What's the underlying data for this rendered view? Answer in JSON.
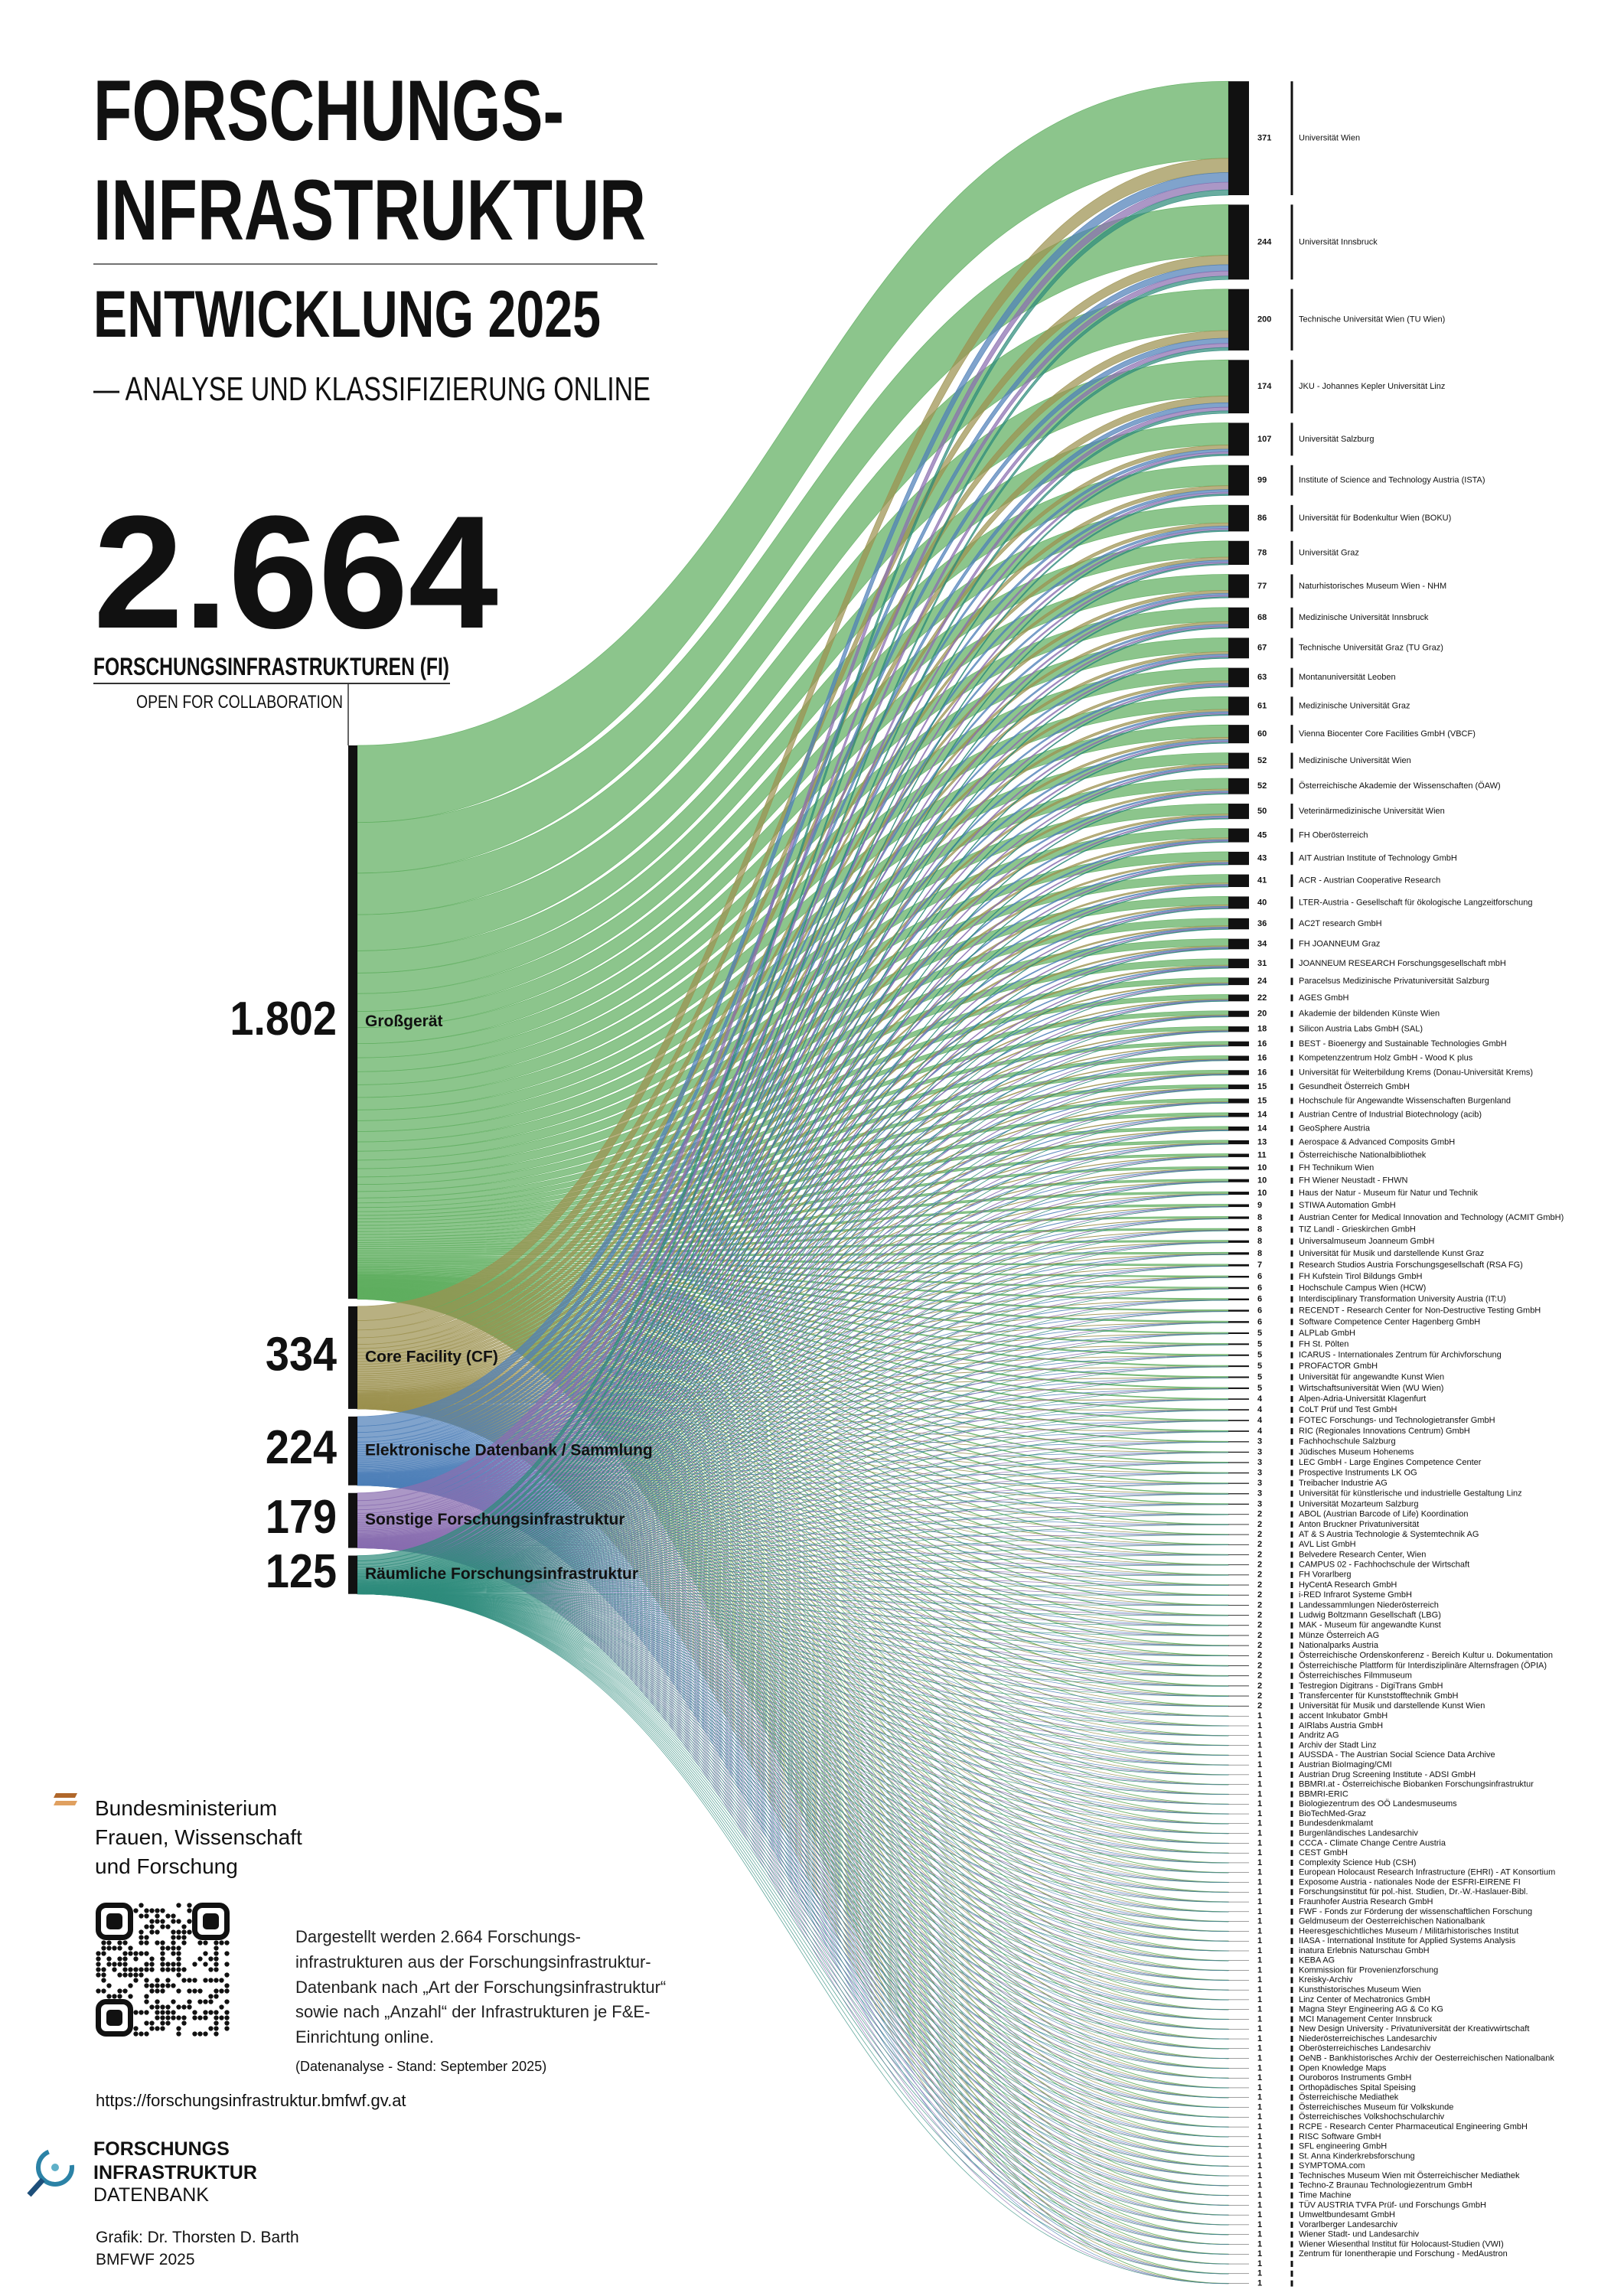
{
  "header": {
    "title_line1": "FORSCHUNGS-",
    "title_line2": "INFRASTRUKTUR",
    "subtitle": "ENTWICKLUNG 2025",
    "tagline": "— ANALYSE UND KLASSIFIZIERUNG ONLINE"
  },
  "summary": {
    "total": {
      "value": 2664,
      "label": "2.664"
    },
    "total_caption": "FORSCHUNGSINFRASTRUKTUREN (FI)",
    "note": "OPEN FOR COLLABORATION"
  },
  "chart_data": {
    "type": "sankey",
    "categories": [
      "Großgerät",
      "Core Facility (CF)",
      "Elektronische Datenbank / Sammlung",
      "Sonstige Forschungsinfrastruktur",
      "Räumliche Forschungsinfrastruktur"
    ],
    "values": [
      1802,
      334,
      224,
      179,
      125
    ],
    "value_labels": [
      "1.802",
      "334",
      "224",
      "179",
      "125"
    ],
    "colors": [
      "#5fae5f",
      "#9c9250",
      "#4f80b8",
      "#8a6fb0",
      "#2f8c7c"
    ],
    "targets": [
      "Universität Wien",
      "Universität Innsbruck",
      "Technische Universität Wien (TU Wien)",
      "JKU - Johannes Kepler Universität Linz",
      "Universität Salzburg",
      "Institute of Science and Technology Austria (ISTA)",
      "Universität für Bodenkultur Wien (BOKU)",
      "Universität Graz",
      "Naturhistorisches Museum Wien - NHM",
      "Medizinische Universität Innsbruck",
      "Technische Universität Graz (TU Graz)",
      "Montanuniversität Leoben",
      "Medizinische Universität Graz",
      "Vienna Biocenter Core Facilities GmbH (VBCF)",
      "Medizinische Universität Wien",
      "Österreichische Akademie der Wissenschaften (ÖAW)",
      "Veterinärmedizinische Universität Wien",
      "FH Oberösterreich",
      "AIT Austrian Institute of Technology GmbH",
      "ACR - Austrian Cooperative Research",
      "LTER-Austria - Gesellschaft für ökologische Langzeitforschung",
      "AC2T research GmbH",
      "FH JOANNEUM Graz",
      "JOANNEUM RESEARCH Forschungsgesellschaft mbH",
      "Paracelsus Medizinische Privatuniversität Salzburg",
      "AGES GmbH",
      "Akademie der bildenden Künste Wien",
      "Silicon Austria Labs GmbH (SAL)",
      "BEST - Bioenergy and Sustainable Technologies GmbH",
      "Kompetenzzentrum Holz GmbH - Wood K plus",
      "Universität für Weiterbildung Krems (Donau-Universität Krems)",
      "Gesundheit Österreich GmbH",
      "Hochschule für Angewandte Wissenschaften Burgenland",
      "Austrian Centre of Industrial Biotechnology (acib)",
      "GeoSphere Austria",
      "Aerospace & Advanced Composits GmbH",
      "Österreichische Nationalbibliothek",
      "FH Technikum Wien",
      "FH Wiener Neustadt - FHWN",
      "Haus der Natur - Museum für Natur und Technik",
      "STIWA Automation GmbH",
      "Austrian Center for Medical Innovation and Technology (ACMIT GmbH)",
      "TIZ Landl - Grieskirchen GmbH",
      "Universalmuseum Joanneum GmbH",
      "Universität für Musik und darstellende Kunst Graz",
      "Research Studios Austria Forschungsgesellschaft (RSA FG)",
      "FH Kufstein Tirol Bildungs GmbH",
      "Hochschule Campus Wien (HCW)",
      "Interdisciplinary Transformation University Austria (IT:U)",
      "RECENDT - Research Center for Non-Destructive Testing GmbH",
      "Software Competence Center Hagenberg GmbH",
      "ALPLab GmbH",
      "FH St. Pölten",
      "ICARUS - Internationales Zentrum für Archivforschung",
      "PROFACTOR GmbH",
      "Universität für angewandte Kunst Wien",
      "Wirtschaftsuniversität Wien (WU Wien)",
      "Alpen-Adria-Universität Klagenfurt",
      "CoLT Prüf und Test GmbH",
      "FOTEC Forschungs- und Technologietransfer GmbH",
      "RIC (Regionales Innovations Centrum) GmbH",
      "Fachhochschule Salzburg",
      "Jüdisches Museum Hohenems",
      "LEC GmbH - Large Engines Competence Center",
      "Prospective Instruments LK OG",
      "Treibacher Industrie AG",
      "Universität für künstlerische und industrielle Gestaltung Linz",
      "Universität Mozarteum Salzburg",
      "ABOL (Austrian Barcode of Life) Koordination",
      "Anton Bruckner Privatuniversität",
      "AT & S Austria Technologie & Systemtechnik AG",
      "AVL List GmbH",
      "Belvedere Research Center, Wien",
      "CAMPUS 02 - Fachhochschule der Wirtschaft",
      "FH Vorarlberg",
      "HyCentA Research GmbH",
      "i-RED Infrarot Systeme GmbH",
      "Landessammlungen Niederösterreich",
      "Ludwig Boltzmann Gesellschaft (LBG)",
      "MAK - Museum für angewandte Kunst",
      "Münze Österreich AG",
      "Nationalparks Austria",
      "Österreichische Ordenskonferenz - Bereich Kultur u. Dokumentation",
      "Österreichische Plattform für Interdisziplinäre Alternsfragen (ÖPIA)",
      "Österreichisches Filmmuseum",
      "Testregion Digitrans - DigiTrans GmbH",
      "Transfercenter für Kunststofftechnik GmbH",
      "Universität für Musik und darstellende Kunst Wien",
      "accent Inkubator GmbH",
      "AIRlabs Austria GmbH",
      "Andritz AG",
      "Archiv der Stadt Linz",
      "AUSSDA - The Austrian Social Science Data Archive",
      "Austrian BioImaging/CMI",
      "Austrian Drug Screening Institute - ADSI GmbH",
      "BBMRI.at - Österreichische Biobanken Forschungsinfrastruktur",
      "BBMRI-ERIC",
      "Biologiezentrum des OÖ Landesmuseums",
      "BioTechMed-Graz",
      "Bundesdenkmalamt",
      "Burgenländisches Landesarchiv",
      "CCCA - Climate Change Centre Austria",
      "CEST GmbH",
      "Complexity Science Hub (CSH)",
      "European Holocaust Research Infrastructure (EHRI) - AT Konsortium",
      "Exposome Austria - nationales Node der ESFRI-EIRENE FI",
      "Forschungsinstitut für pol.-hist. Studien, Dr.-W.-Haslauer-Bibl.",
      "Fraunhofer Austria Research GmbH",
      "FWF - Fonds zur Förderung der wissenschaftlichen Forschung",
      "Geldmuseum der Oesterreichischen Nationalbank",
      "Heeresgeschichtliches Museum / Militärhistorisches Institut",
      "IIASA - International Institute for Applied Systems Analysis",
      "inatura Erlebnis Naturschau GmbH",
      "KEBA AG",
      "Kommission für Provenienzforschung",
      "Kreisky-Archiv",
      "Kunsthistorisches Museum Wien",
      "Linz Center of Mechatronics GmbH",
      "Magna Steyr Engineering AG & Co KG",
      "MCI Management Center Innsbruck",
      "New Design University - Privatuniversität der Kreativwirtschaft",
      "Niederösterreichisches Landesarchiv",
      "Oberösterreichisches Landesarchiv",
      "OeNB - Bankhistorisches Archiv der Oesterreichischen Nationalbank",
      "Open Knowledge Maps",
      "Ouroboros Instruments GmbH",
      "Orthopädisches Spital Speising",
      "Österreichische Mediathek",
      "Österreichisches Museum für Volkskunde",
      "Österreichisches Volkshochschularchiv",
      "RCPE - Research Center Pharmaceutical Engineering GmbH",
      "RISC Software GmbH",
      "SFL engineering GmbH",
      "St. Anna Kinderkrebsforschung",
      "SYMPTOMA.com",
      "Technisches Museum Wien mit Österreichischer Mediathek",
      "Techno-Z Braunau Technologiezentrum GmbH",
      "Time Machine",
      "TÜV AUSTRIA TVFA Prüf- und Forschungs GmbH",
      "Umweltbundesamt GmbH",
      "Vorarlberger Landesarchiv",
      "Wiener Stadt- und Landesarchiv",
      "Wiener Wiesenthal Institut für Holocaust-Studien (VWI)",
      "Zentrum für Ionentherapie und Forschung - MedAustron"
    ],
    "target_values": [
      371,
      244,
      200,
      174,
      107,
      99,
      86,
      78,
      77,
      68,
      67,
      63,
      61,
      60,
      52,
      52,
      50,
      45,
      43,
      41,
      40,
      36,
      34,
      31,
      24,
      22,
      20,
      18,
      16,
      16,
      16,
      15,
      15,
      14,
      14,
      13,
      11,
      10,
      10,
      10,
      9,
      8,
      8,
      8,
      8,
      7,
      6,
      6,
      6,
      6,
      6,
      5,
      5,
      5,
      5,
      5,
      5,
      4,
      4,
      4,
      4,
      3,
      3,
      3,
      3,
      3,
      3,
      3,
      2,
      2,
      2,
      2,
      2,
      2,
      2,
      2,
      2,
      2,
      2,
      2,
      2,
      2,
      2,
      2,
      2,
      2,
      2,
      2,
      1,
      1,
      1,
      1,
      1,
      1,
      1,
      1,
      1,
      1,
      1,
      1,
      1,
      1,
      1,
      1,
      1,
      1,
      1,
      1,
      1,
      1,
      1,
      1,
      1,
      1,
      1,
      1,
      1,
      1,
      1,
      1,
      1,
      1,
      1,
      1,
      1,
      1,
      1,
      1,
      1,
      1,
      1,
      1,
      1,
      1,
      1,
      1,
      1,
      1,
      1,
      1,
      1,
      1,
      1,
      1,
      1,
      1,
      1
    ]
  },
  "footer": {
    "ministry": [
      "Bundesministerium",
      "Frauen, Wissenschaft",
      "und Forschung"
    ],
    "description": [
      "Dargestellt werden 2.664 Forschungs-",
      "infrastrukturen aus der Forschungsinfrastruktur-",
      "Datenbank nach „Art der Forschungsinfrastruktur“",
      "sowie nach „Anzahl“ der Infrastrukturen je F&E-",
      "Einrichtung online."
    ],
    "source_note": "(Datenanalyse - Stand: September 2025)",
    "url": "https://forschungsinfrastruktur.bmfwf.gv.at",
    "logo": [
      "FORSCHUNGS",
      "INFRASTRUKTUR",
      "DATENBANK"
    ],
    "credit": [
      "Grafik: Dr. Thorsten D. Barth",
      "BMFWF 2025"
    ]
  }
}
